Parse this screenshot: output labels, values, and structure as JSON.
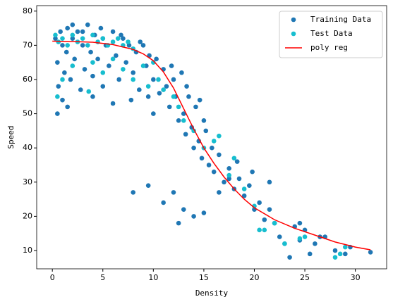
{
  "chart_data": {
    "type": "scatter",
    "xlabel": "Density",
    "ylabel": "Speed",
    "xlim": [
      -1.55,
      33.1
    ],
    "ylim": [
      4.65,
      81.6
    ],
    "xticks": [
      0,
      5,
      10,
      15,
      20,
      25,
      30
    ],
    "yticks": [
      10,
      20,
      30,
      40,
      50,
      60,
      70,
      80
    ],
    "legend": "upper right",
    "series": [
      {
        "name": "Training Data",
        "type": "scatter",
        "color": "#1f77b4",
        "x": [
          0.3,
          0.5,
          0.6,
          0.8,
          1,
          1.2,
          1.4,
          1.5,
          1.8,
          2,
          2.2,
          2.5,
          2.8,
          3,
          3.2,
          3.5,
          3.8,
          4,
          4.2,
          4.5,
          4.8,
          5,
          5.3,
          5.6,
          6,
          6.3,
          6.6,
          7,
          7.3,
          7.6,
          8,
          8.3,
          8.6,
          9,
          9.3,
          9.6,
          10,
          10.3,
          10.6,
          11,
          11.3,
          11.6,
          12,
          12.2,
          12.5,
          12.8,
          13,
          13.2,
          13.5,
          13.8,
          14,
          14.2,
          14.5,
          14.8,
          15,
          15.2,
          15.5,
          15.8,
          16,
          16.5,
          17,
          17.5,
          18,
          18.5,
          19,
          19.5,
          20,
          20.5,
          21,
          21.5,
          22,
          22.5,
          23,
          23.5,
          24,
          24.5,
          25,
          25.5,
          26,
          27,
          28,
          29,
          29.5,
          31.5,
          8,
          9.5,
          11,
          12,
          12.5,
          13,
          14,
          15,
          16.5,
          17.5,
          0.5,
          1,
          1.5,
          4,
          6,
          7.8,
          9.5,
          10,
          3,
          5,
          2,
          8.7,
          6.8,
          11.8,
          13.3,
          14.6,
          18.3,
          19.8,
          21.5,
          24.5,
          26.5
        ],
        "values": [
          72,
          65,
          58,
          74,
          70,
          62,
          68,
          75,
          60,
          72,
          66,
          74,
          57,
          70,
          63,
          76,
          68,
          61,
          73,
          66,
          75,
          58,
          70,
          64,
          74,
          67,
          60,
          72,
          65,
          70,
          62,
          68,
          57,
          70,
          64,
          67,
          60,
          66,
          56,
          63,
          58,
          52,
          60,
          55,
          48,
          62,
          50,
          44,
          55,
          46,
          40,
          52,
          42,
          37,
          48,
          45,
          35,
          40,
          33,
          38,
          30,
          34,
          28,
          31,
          26,
          29,
          22,
          24,
          19,
          22,
          18,
          14,
          12,
          8,
          17,
          13,
          16,
          9,
          12,
          14,
          10,
          9,
          11,
          9.5,
          27,
          29,
          24,
          27,
          18,
          22,
          20,
          21,
          27,
          31,
          50,
          54,
          52,
          55,
          53,
          54,
          55,
          50,
          74,
          72,
          76,
          71,
          73,
          64,
          58,
          54,
          36,
          33,
          30,
          18,
          14
        ]
      },
      {
        "name": "Test Data",
        "type": "scatter",
        "color": "#17becf",
        "x": [
          0.3,
          0.6,
          1,
          1.5,
          2,
          2.5,
          3,
          3.5,
          4,
          4.5,
          5,
          5.5,
          6,
          6.5,
          7,
          7.5,
          8,
          0.5,
          1,
          2,
          3.6,
          4,
          5,
          6,
          7,
          8,
          9,
          9.5,
          10,
          10.5,
          11,
          12,
          12.5,
          13,
          14,
          15,
          16,
          16.5,
          17.5,
          18,
          19,
          20,
          20.5,
          21,
          22,
          23,
          24.5,
          25,
          28,
          28.5,
          29
        ],
        "values": [
          73,
          71,
          72,
          70,
          73,
          71,
          72,
          70,
          73,
          71,
          72,
          70,
          71,
          72,
          70,
          71,
          69,
          55,
          60,
          64,
          56.5,
          65,
          62,
          66,
          63,
          60,
          64,
          58,
          65,
          60,
          57,
          55,
          52,
          48,
          45,
          40,
          42,
          43.5,
          32,
          37,
          28,
          23,
          16,
          16,
          18,
          12,
          13.5,
          14,
          8,
          9,
          11
        ]
      },
      {
        "name": "poly reg",
        "type": "line",
        "color": "#ff0000",
        "x": [
          0,
          2,
          4,
          6,
          8,
          9,
          10,
          11,
          12,
          13,
          14,
          15,
          16,
          17,
          18,
          19,
          20,
          22,
          24,
          26,
          28,
          30,
          31.5
        ],
        "values": [
          71.2,
          71.1,
          70.9,
          70.2,
          68.8,
          67.5,
          65.5,
          62.2,
          57.5,
          51.5,
          45.5,
          40,
          35.5,
          31.5,
          28,
          25,
          22.5,
          19,
          16.5,
          14.5,
          12.5,
          11,
          10.2
        ]
      }
    ]
  }
}
